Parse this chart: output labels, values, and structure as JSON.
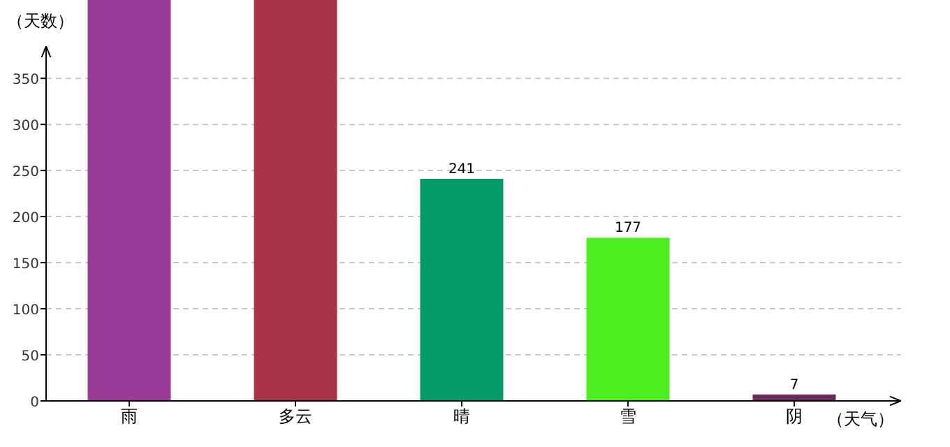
{
  "chart_data": {
    "type": "bar",
    "xlabel": "（天气）",
    "ylabel": "（天数）",
    "categories": [
      "雨",
      "多云",
      "晴",
      "雪",
      "阴"
    ],
    "values": [
      435,
      435,
      241,
      177,
      7
    ],
    "colors": [
      "#9b3a96",
      "#a73446",
      "#069a6a",
      "#4cee22",
      "#6b2a5f"
    ],
    "value_labels": [
      null,
      null,
      "241",
      "177",
      "7"
    ],
    "ylim": [
      0,
      435
    ],
    "yticks": [
      0,
      50,
      100,
      150,
      200,
      250,
      300,
      350
    ],
    "grid": "y"
  }
}
